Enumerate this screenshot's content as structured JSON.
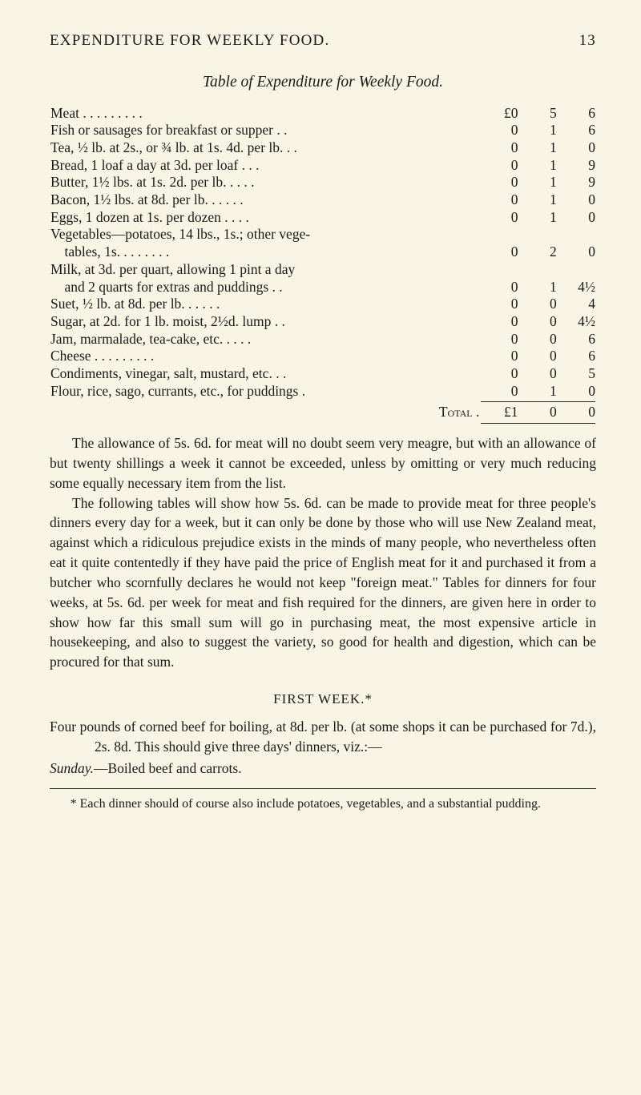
{
  "header": {
    "title": "EXPENDITURE FOR WEEKLY FOOD.",
    "page_number": "13"
  },
  "table": {
    "title": "Table of Expenditure for Weekly Food.",
    "rows": [
      {
        "item": "Meat . . . . . . . . .",
        "l": "£0",
        "s": "5",
        "d": "6"
      },
      {
        "item": "Fish or sausages for breakfast or supper . .",
        "l": "0",
        "s": "1",
        "d": "6"
      },
      {
        "item": "Tea, ½ lb. at 2s., or ¾ lb. at 1s. 4d. per lb.  .  .",
        "l": "0",
        "s": "1",
        "d": "0"
      },
      {
        "item": "Bread, 1 loaf a day at 3d. per loaf  .  .  .",
        "l": "0",
        "s": "1",
        "d": "9"
      },
      {
        "item": "Butter, 1½ lbs. at 1s. 2d. per lb.  .  .  .  .",
        "l": "0",
        "s": "1",
        "d": "9"
      },
      {
        "item": "Bacon, 1½ lbs. at 8d. per lb.  .  .  .  .  .",
        "l": "0",
        "s": "1",
        "d": "0"
      },
      {
        "item": "Eggs, 1 dozen at 1s. per dozen  .  .  .  .",
        "l": "0",
        "s": "1",
        "d": "0"
      },
      {
        "item": "Vegetables—potatoes, 14 lbs., 1s.; other vege-",
        "l": "",
        "s": "",
        "d": ""
      },
      {
        "item": "    tables, 1s.  .  .  .  .  .  .  .",
        "l": "0",
        "s": "2",
        "d": "0"
      },
      {
        "item": "Milk, at 3d. per quart, allowing 1 pint a day",
        "l": "",
        "s": "",
        "d": ""
      },
      {
        "item": "    and 2 quarts for extras and puddings .  .",
        "l": "0",
        "s": "1",
        "d": "4½"
      },
      {
        "item": "Suet, ½ lb. at 8d. per lb.  .  .  .  .  .",
        "l": "0",
        "s": "0",
        "d": "4"
      },
      {
        "item": "Sugar, at 2d. for 1 lb. moist, 2½d. lump .  .",
        "l": "0",
        "s": "0",
        "d": "4½"
      },
      {
        "item": "Jam, marmalade, tea-cake, etc.  .  .  .  .",
        "l": "0",
        "s": "0",
        "d": "6"
      },
      {
        "item": "Cheese .  .  .  .  .  .  .  .  .",
        "l": "0",
        "s": "0",
        "d": "6"
      },
      {
        "item": "Condiments, vinegar, salt, mustard, etc.  .  .",
        "l": "0",
        "s": "0",
        "d": "5"
      },
      {
        "item": "Flour, rice, sago, currants, etc., for puddings .",
        "l": "0",
        "s": "1",
        "d": "0"
      }
    ],
    "total": {
      "label": "Total  .",
      "l": "£1",
      "s": "0",
      "d": "0"
    }
  },
  "paragraphs": {
    "p1": "The allowance of 5s. 6d. for meat will no doubt seem very meagre, but with an allowance of but twenty shillings a week it cannot be exceeded, unless by omitting or very much reducing some equally necessary item from the list.",
    "p2": "The following tables will show how 5s. 6d. can be made to provide meat for three people's dinners every day for a week, but it can only be done by those who will use New Zealand meat, against which a ridiculous prejudice exists in the minds of many people, who nevertheless often eat it quite contentedly if they have paid the price of English meat for it and purchased it from a butcher who scornfully declares he would not keep \"foreign meat.\" Tables for dinners for four weeks, at 5s. 6d. per week for meat and fish required for the dinners, are given here in order to show how far this small sum will go in purchasing meat, the most expensive article in housekeeping, and also to suggest the variety, so good for health and digestion, which can be procured for that sum."
  },
  "week": {
    "heading": "FIRST WEEK.*",
    "entry1_prefix": "Four pounds of corned beef for boiling, at 8d. per lb. (at some shops it can be purchased for 7d.), 2s. 8d. This should give three days' dinners, viz.:—",
    "entry2_label": "Sunday.",
    "entry2_rest": "—Boiled beef and carrots."
  },
  "footnote": {
    "text": "* Each dinner should of course also include potatoes, vegetables, and a substantial pudding."
  }
}
